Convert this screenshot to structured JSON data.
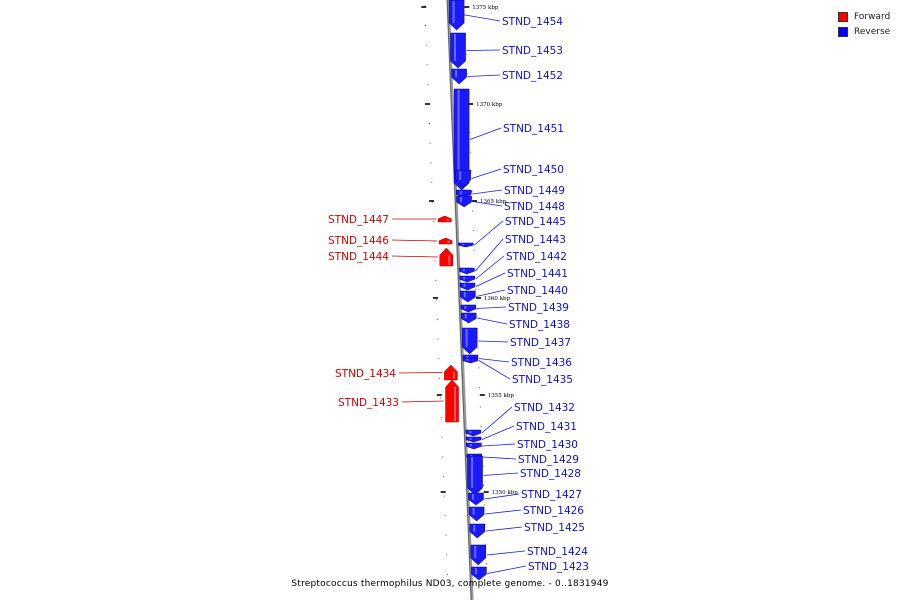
{
  "colors": {
    "forward": "#ff0000",
    "reverse": "#1a1aff",
    "backbone": "#808080"
  },
  "legend": [
    {
      "label": "Forward",
      "color": "#ff0000"
    },
    {
      "label": "Reverse",
      "color": "#0000ff"
    }
  ],
  "caption": "Streptococcus thermophilus ND03, complete genome. - 0..1831949",
  "ticks": [
    "1375 kbp",
    "1370 kbp",
    "1365 kbp",
    "1360 kbp",
    "1355 kbp",
    "1350 kbp"
  ],
  "genes": [
    {
      "name": "STND_1454",
      "strand": "reverse"
    },
    {
      "name": "STND_1453",
      "strand": "reverse"
    },
    {
      "name": "STND_1452",
      "strand": "reverse"
    },
    {
      "name": "STND_1451",
      "strand": "reverse"
    },
    {
      "name": "STND_1450",
      "strand": "reverse"
    },
    {
      "name": "STND_1449",
      "strand": "reverse"
    },
    {
      "name": "STND_1448",
      "strand": "reverse"
    },
    {
      "name": "STND_1447",
      "strand": "forward"
    },
    {
      "name": "STND_1446",
      "strand": "forward"
    },
    {
      "name": "STND_1445",
      "strand": "reverse"
    },
    {
      "name": "STND_1444",
      "strand": "forward"
    },
    {
      "name": "STND_1443",
      "strand": "reverse"
    },
    {
      "name": "STND_1442",
      "strand": "reverse"
    },
    {
      "name": "STND_1441",
      "strand": "reverse"
    },
    {
      "name": "STND_1440",
      "strand": "reverse"
    },
    {
      "name": "STND_1439",
      "strand": "reverse"
    },
    {
      "name": "STND_1438",
      "strand": "reverse"
    },
    {
      "name": "STND_1437",
      "strand": "reverse"
    },
    {
      "name": "STND_1436",
      "strand": "reverse"
    },
    {
      "name": "STND_1435",
      "strand": "reverse"
    },
    {
      "name": "STND_1434",
      "strand": "forward"
    },
    {
      "name": "STND_1433",
      "strand": "forward"
    },
    {
      "name": "STND_1432",
      "strand": "reverse"
    },
    {
      "name": "STND_1431",
      "strand": "reverse"
    },
    {
      "name": "STND_1430",
      "strand": "reverse"
    },
    {
      "name": "STND_1429",
      "strand": "reverse"
    },
    {
      "name": "STND_1428",
      "strand": "reverse"
    },
    {
      "name": "STND_1427",
      "strand": "reverse"
    },
    {
      "name": "STND_1426",
      "strand": "reverse"
    },
    {
      "name": "STND_1425",
      "strand": "reverse"
    },
    {
      "name": "STND_1424",
      "strand": "reverse"
    },
    {
      "name": "STND_1423",
      "strand": "reverse"
    }
  ]
}
